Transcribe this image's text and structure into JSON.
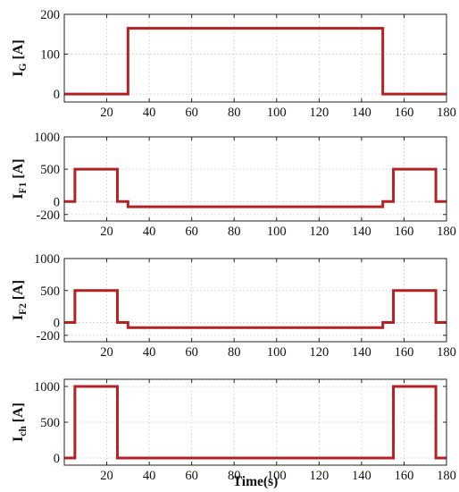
{
  "chart_data": [
    {
      "type": "line",
      "ylabel_main": "I",
      "ylabel_sub": "G",
      "ylabel_unit": " [A]",
      "xlim": [
        0,
        180
      ],
      "ylim": [
        -20,
        200
      ],
      "xticks": [
        20,
        40,
        60,
        80,
        100,
        120,
        140,
        160,
        180
      ],
      "yticks": [
        0,
        100,
        200
      ],
      "grid": true,
      "color": "#b22222",
      "series": [
        {
          "x": [
            0,
            30,
            30,
            150,
            150,
            180
          ],
          "y": [
            0,
            0,
            165,
            165,
            0,
            0
          ]
        }
      ]
    },
    {
      "type": "line",
      "ylabel_main": "I",
      "ylabel_sub": "F1",
      "ylabel_unit": " [A]",
      "xlim": [
        0,
        180
      ],
      "ylim": [
        -300,
        1000
      ],
      "xticks": [
        20,
        40,
        60,
        80,
        100,
        120,
        140,
        160,
        180
      ],
      "yticks": [
        -200,
        0,
        500,
        1000
      ],
      "grid": true,
      "color": "#b22222",
      "series": [
        {
          "x": [
            0,
            5,
            5,
            25,
            25,
            30,
            30,
            150,
            150,
            155,
            155,
            175,
            175,
            180
          ],
          "y": [
            0,
            0,
            500,
            500,
            0,
            0,
            -80,
            -80,
            0,
            0,
            500,
            500,
            0,
            0
          ]
        }
      ]
    },
    {
      "type": "line",
      "ylabel_main": "I",
      "ylabel_sub": "F2",
      "ylabel_unit": " [A]",
      "xlim": [
        0,
        180
      ],
      "ylim": [
        -300,
        1000
      ],
      "xticks": [
        20,
        40,
        60,
        80,
        100,
        120,
        140,
        160,
        180
      ],
      "yticks": [
        -200,
        0,
        500,
        1000
      ],
      "grid": true,
      "color": "#b22222",
      "series": [
        {
          "x": [
            0,
            5,
            5,
            25,
            25,
            30,
            30,
            150,
            150,
            155,
            155,
            175,
            175,
            180
          ],
          "y": [
            0,
            0,
            500,
            500,
            0,
            0,
            -80,
            -80,
            0,
            0,
            500,
            500,
            0,
            0
          ]
        }
      ]
    },
    {
      "type": "line",
      "ylabel_main": "I",
      "ylabel_sub": "ch",
      "ylabel_unit": " [A]",
      "xlabel": "Time(s)",
      "xlim": [
        0,
        180
      ],
      "ylim": [
        -100,
        1100
      ],
      "xticks": [
        20,
        40,
        60,
        80,
        100,
        120,
        140,
        160,
        180
      ],
      "yticks": [
        0,
        500,
        1000
      ],
      "grid": true,
      "color": "#b22222",
      "series": [
        {
          "x": [
            0,
            5,
            5,
            25,
            25,
            155,
            155,
            175,
            175,
            180
          ],
          "y": [
            0,
            0,
            1000,
            1000,
            0,
            0,
            1000,
            1000,
            0,
            0
          ]
        }
      ]
    }
  ]
}
